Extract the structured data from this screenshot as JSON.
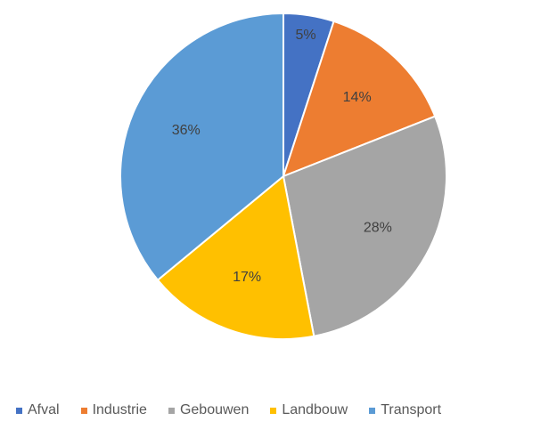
{
  "chart_data": {
    "type": "pie",
    "categories": [
      "Afval",
      "Industrie",
      "Gebouwen",
      "Landbouw",
      "Transport"
    ],
    "values": [
      5,
      14,
      28,
      17,
      36
    ],
    "labels": [
      "5%",
      "14%",
      "28%",
      "17%",
      "36%"
    ],
    "colors": [
      "#4472C4",
      "#ED7D31",
      "#A5A5A5",
      "#FFC000",
      "#5B9BD5"
    ],
    "legend_position": "bottom",
    "title": ""
  }
}
